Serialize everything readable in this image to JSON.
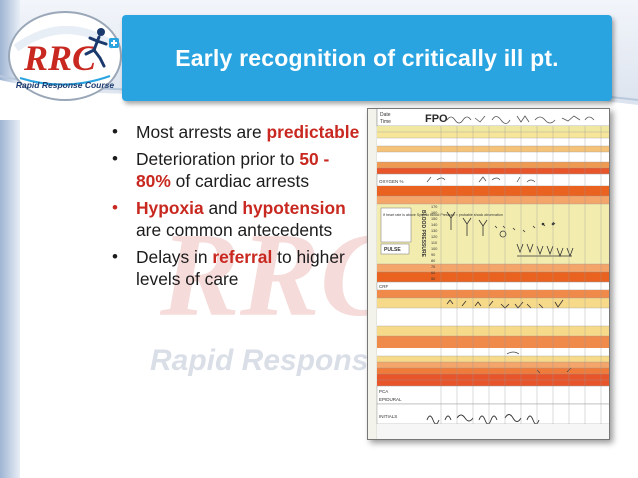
{
  "slide": {
    "title": "Early recognition of critically ill pt.",
    "accent_color": "#2aa4e0",
    "highlight_color": "#c8281f"
  },
  "logo": {
    "wordmark": "RRC",
    "tagline": "Rapid Response Course"
  },
  "watermark": {
    "wordmark": "RRC",
    "tagline": "Rapid Response"
  },
  "bullets": [
    {
      "pre": "Most arrests are ",
      "hl": "predictable",
      "post": ""
    },
    {
      "pre": "Deterioration prior to ",
      "hl": "50 - 80%",
      "post": " of cardiac arrests"
    },
    {
      "hl": "Hypoxia",
      "mid": " and ",
      "hl2": "hypotension",
      "post": " are common antecedents"
    },
    {
      "pre": "Delays in ",
      "hl": "referral",
      "post": " to higher levels of care"
    }
  ],
  "obs_chart": {
    "header": "FPO",
    "row_labels": [
      "Date",
      "Time",
      "OXYGEN %",
      "PULSE",
      "CRF",
      "PCA",
      "EPIDURAL",
      "INITIALS"
    ],
    "side_vertical": "BLOOD PRESSURE",
    "note_box": "If heart rate is above Systolic Blood Pressure = probable shock observation",
    "scale_values": [
      "170",
      "160",
      "150",
      "140",
      "130",
      "120",
      "110",
      "100",
      "90",
      "80",
      "70",
      "60",
      "50",
      "40"
    ]
  }
}
